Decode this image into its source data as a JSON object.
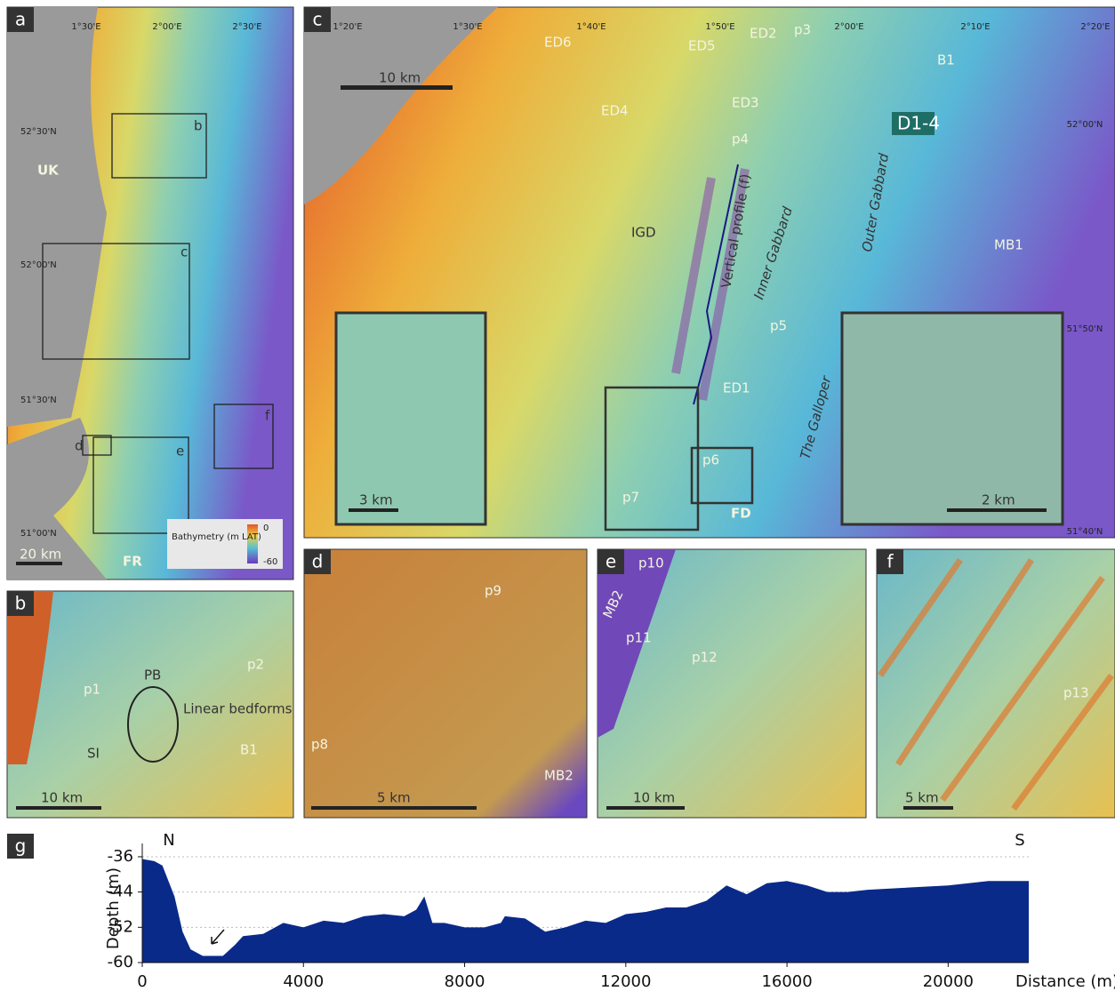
{
  "panel_a": {
    "label": "a",
    "lon_labels": [
      "1°30'E",
      "2°00'E",
      "2°30'E"
    ],
    "lat_labels": [
      "52°30'N",
      "52°00'N",
      "51°30'N",
      "51°00'N"
    ],
    "land_labels": [
      "UK",
      "FR"
    ],
    "box_labels": [
      "b",
      "c",
      "d",
      "e",
      "f"
    ],
    "scale": "20 km",
    "colorbar_title": "Bathymetry (m LAT)",
    "colorbar_max": "0",
    "colorbar_min": "-60"
  },
  "panel_b": {
    "label": "b",
    "texts": [
      "p1",
      "p2",
      "PB",
      "SI",
      "Linear bedforms",
      "B1"
    ],
    "scale": "10 km"
  },
  "panel_c": {
    "label": "c",
    "lon_labels": [
      "1°20'E",
      "1°30'E",
      "1°40'E",
      "1°50'E",
      "2°00'E",
      "2°10'E",
      "2°20'E"
    ],
    "lat_labels": [
      "52°00'N",
      "51°50'N",
      "51°40'N"
    ],
    "features": [
      "ED1",
      "ED2",
      "ED3",
      "ED4",
      "ED5",
      "ED6",
      "p3",
      "p4",
      "p5",
      "p6",
      "p7",
      "B1",
      "MB1",
      "D1-4",
      "IGD",
      "Vertical profile (f)",
      "Inner Gabbard",
      "Outer Gabbard",
      "The Galloper",
      "FD"
    ],
    "scale": "10 km",
    "inset_left_scale": "3 km",
    "inset_right_scale": "2 km"
  },
  "panel_d": {
    "label": "d",
    "texts": [
      "p8",
      "p9",
      "MB2"
    ],
    "scale": "5 km"
  },
  "panel_e": {
    "label": "e",
    "texts": [
      "p10",
      "p11",
      "p12",
      "MB2"
    ],
    "scale": "10 km"
  },
  "panel_f": {
    "label": "f",
    "texts": [
      "p13"
    ],
    "scale": "5 km"
  },
  "chart_data": {
    "type": "area",
    "panel_label": "g",
    "x_label": "Distance (m)",
    "y_label": "Depth (m)",
    "annotations": [
      "N",
      "S"
    ],
    "color": "#0a2a8a",
    "x": [
      0,
      300,
      500,
      800,
      1000,
      1200,
      1500,
      2000,
      2300,
      2500,
      3000,
      3500,
      4000,
      4500,
      5000,
      5500,
      6000,
      6500,
      6800,
      7000,
      7200,
      7500,
      8000,
      8500,
      8900,
      9000,
      9500,
      10000,
      10500,
      11000,
      11500,
      12000,
      12500,
      13000,
      13500,
      14000,
      14500,
      15000,
      15500,
      16000,
      16500,
      17000,
      17500,
      18000,
      19000,
      20000,
      21000,
      22000
    ],
    "values": [
      -36.5,
      -37,
      -38,
      -45,
      -53,
      -57,
      -58.5,
      -58.5,
      -56,
      -54,
      -53.5,
      -51,
      -52,
      -50.5,
      -51,
      -49.5,
      -49,
      -49.5,
      -48,
      -45,
      -51,
      -51,
      -52,
      -52,
      -51,
      -49.5,
      -50,
      -53,
      -52,
      -50.5,
      -51,
      -49,
      -48.5,
      -47.5,
      -47.5,
      -46,
      -42.5,
      -44.5,
      -42,
      -41.5,
      -42.5,
      -44,
      -44,
      -43.5,
      -43,
      -42.5,
      -41.5,
      -41.5
    ],
    "xlim": [
      0,
      22000
    ],
    "ylim": [
      -60,
      -35
    ],
    "xticks": [
      0,
      4000,
      8000,
      12000,
      16000,
      20000
    ],
    "yticks": [
      -36,
      -44,
      -52,
      -60
    ],
    "grid": true
  }
}
